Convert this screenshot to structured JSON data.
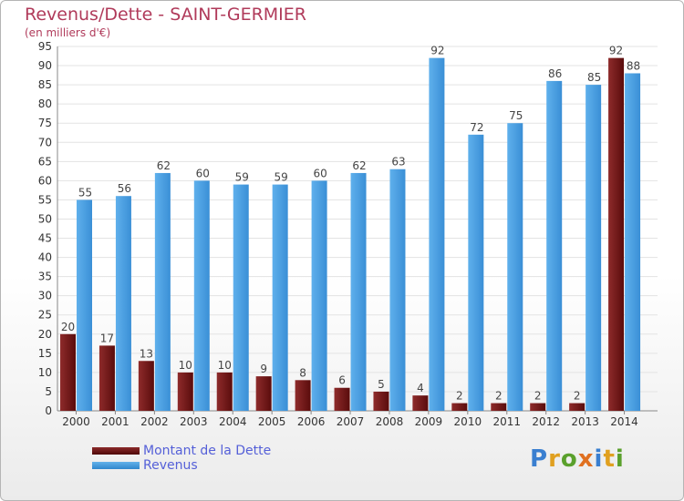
{
  "header": {
    "title": "Revenus/Dette - SAINT-GERMIER",
    "subtitle": "(en milliers d'€)"
  },
  "legend": {
    "debt_label": "Montant de la Dette",
    "revenue_label": "Revenus"
  },
  "logo": {
    "text": "Proxiti"
  },
  "colors": {
    "debt": "#7a1a1a",
    "revenue": "#4aa3e6",
    "title": "#b03a5a",
    "legend_text": "#5560d8",
    "grid": "#e3e3e3"
  },
  "chart_data": {
    "type": "bar",
    "title": "Revenus/Dette - SAINT-GERMIER",
    "subtitle": "(en milliers d'€)",
    "xlabel": "",
    "ylabel": "",
    "categories": [
      "2000",
      "2001",
      "2002",
      "2003",
      "2004",
      "2005",
      "2006",
      "2007",
      "2008",
      "2009",
      "2010",
      "2011",
      "2012",
      "2013",
      "2014"
    ],
    "series": [
      {
        "name": "Montant de la Dette",
        "values": [
          20,
          17,
          13,
          10,
          10,
          9,
          8,
          6,
          5,
          4,
          2,
          2,
          2,
          2,
          92
        ]
      },
      {
        "name": "Revenus",
        "values": [
          55,
          56,
          62,
          60,
          59,
          59,
          60,
          62,
          63,
          92,
          72,
          75,
          86,
          85,
          88
        ]
      }
    ],
    "ylim": [
      0,
      95
    ],
    "yticks": [
      0,
      5,
      10,
      15,
      20,
      25,
      30,
      35,
      40,
      45,
      50,
      55,
      60,
      65,
      70,
      75,
      80,
      85,
      90,
      95
    ],
    "grid": true,
    "legend_position": "bottom-left"
  }
}
